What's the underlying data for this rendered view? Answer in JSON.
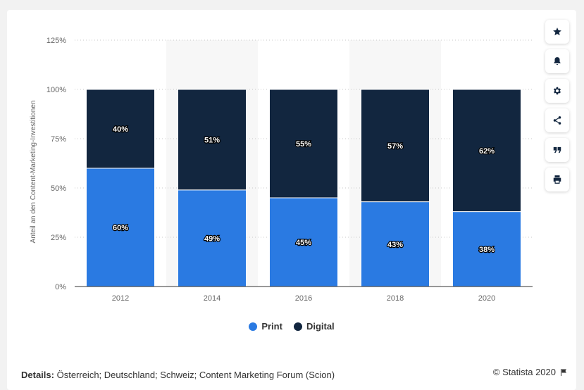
{
  "chart_data": {
    "type": "bar",
    "stacked": true,
    "categories": [
      "2012",
      "2014",
      "2016",
      "2018",
      "2020"
    ],
    "series": [
      {
        "name": "Print",
        "color": "#2a7ae2",
        "values": [
          60,
          49,
          45,
          43,
          38
        ]
      },
      {
        "name": "Digital",
        "color": "#12263f",
        "values": [
          40,
          51,
          55,
          57,
          62
        ]
      }
    ],
    "data_labels": {
      "Print": [
        "60%",
        "49%",
        "45%",
        "43%",
        "38%"
      ],
      "Digital": [
        "40%",
        "51%",
        "55%",
        "57%",
        "62%"
      ]
    },
    "ylabel": "Anteil an den Content-Marketing-Investitionen",
    "ylim": [
      0,
      125
    ],
    "yticks": [
      "0%",
      "25%",
      "50%",
      "75%",
      "100%",
      "125%"
    ],
    "grid": true,
    "legend_position": "bottom-center",
    "alternating_band_color": "#f7f7f7"
  },
  "toolbar": {
    "icons": [
      "star-icon",
      "bell-icon",
      "gear-icon",
      "share-icon",
      "quote-icon",
      "print-icon"
    ]
  },
  "footer": {
    "details_label": "Details:",
    "details_text": "Österreich; Deutschland; Schweiz; Content Marketing Forum (Scion)",
    "source": "© Statista 2020"
  }
}
